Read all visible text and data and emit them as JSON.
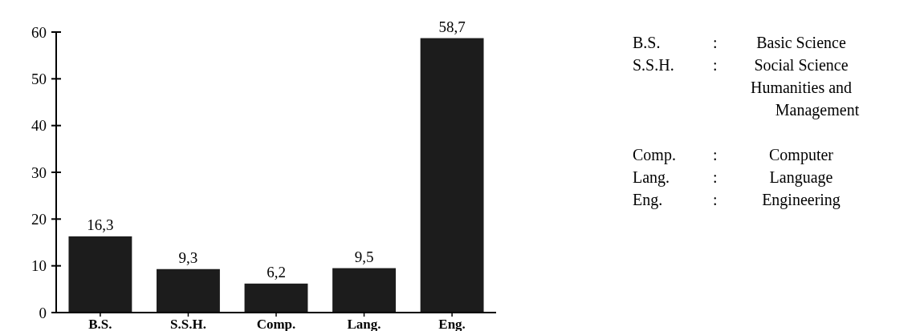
{
  "chart_data": {
    "type": "bar",
    "categories": [
      "B.S.",
      "S.S.H.",
      "Comp.",
      "Lang.",
      "Eng."
    ],
    "values": [
      16.3,
      9.3,
      6.2,
      9.5,
      58.7
    ],
    "value_labels": [
      "16,3",
      "9,3",
      "6,2",
      "9,5",
      "58,7"
    ],
    "color": "#1c1c1c",
    "ylim": [
      0,
      60
    ],
    "yticks": [
      0,
      10,
      20,
      30,
      40,
      50,
      60
    ],
    "grid": false,
    "annotations": [
      "B.S. : Basic Science",
      "S.S.H. : Social Science Humanities and Management",
      "Comp. : Computer",
      "Lang. : Language",
      "Eng. : Engineering"
    ]
  }
}
